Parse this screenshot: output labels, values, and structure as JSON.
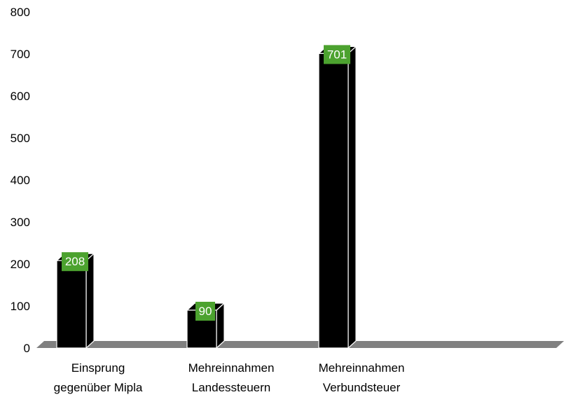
{
  "chart_data": {
    "type": "bar",
    "style": "3d",
    "categories": [
      [
        "Einsprung",
        "gegenüber Mipla"
      ],
      [
        "Mehreinnahmen",
        "Landessteuern"
      ],
      [
        "Mehreinnahmen",
        "Verbundsteuer"
      ]
    ],
    "values": [
      208,
      90,
      701
    ],
    "data_labels": [
      "208",
      "90",
      "701"
    ],
    "ylim": [
      0,
      800
    ],
    "yticks": [
      "0",
      "100",
      "200",
      "300",
      "400",
      "500",
      "600",
      "700",
      "800"
    ],
    "grid": false,
    "legend": "none",
    "colors": {
      "bar": "#000000",
      "bar_edge": "#ffffff",
      "floor": "#808080",
      "label_bg": "#4ca22f",
      "label_text": "#ffffff"
    }
  }
}
